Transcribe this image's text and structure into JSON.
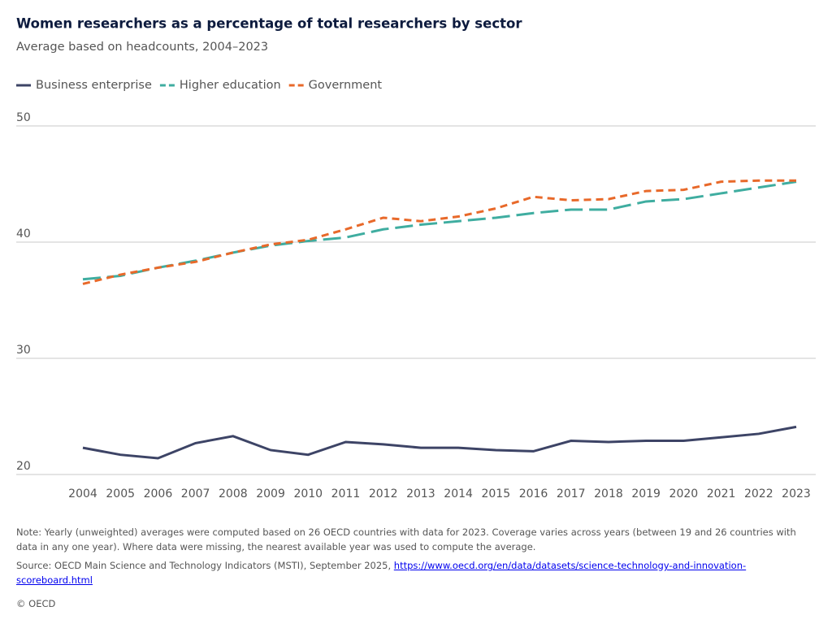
{
  "chart_data": {
    "type": "line",
    "title": "Women researchers as a percentage of total researchers by sector",
    "subtitle": "Average based on headcounts, 2004–2023",
    "x": [
      2004,
      2005,
      2006,
      2007,
      2008,
      2009,
      2010,
      2011,
      2012,
      2013,
      2014,
      2015,
      2016,
      2017,
      2018,
      2019,
      2020,
      2021,
      2022,
      2023
    ],
    "xlim": [
      2004,
      2023
    ],
    "xticks": [
      2004,
      2005,
      2006,
      2007,
      2008,
      2009,
      2010,
      2011,
      2012,
      2013,
      2014,
      2015,
      2016,
      2017,
      2018,
      2019,
      2020,
      2021,
      2022,
      2023
    ],
    "ylim": [
      20,
      50
    ],
    "yticks": [
      20,
      30,
      40,
      50
    ],
    "grid": true,
    "legend": "top-left",
    "series": [
      {
        "name": "Business enterprise",
        "color": "#3d4466",
        "line_style": "solid",
        "values": [
          22.3,
          21.7,
          21.4,
          22.7,
          23.3,
          22.1,
          21.7,
          22.8,
          22.6,
          22.3,
          22.3,
          22.1,
          22.0,
          22.9,
          22.8,
          22.9,
          22.9,
          23.2,
          23.5,
          24.1
        ]
      },
      {
        "name": "Higher education",
        "color": "#3fada0",
        "line_style": "long-dash",
        "values": [
          36.8,
          37.1,
          37.8,
          38.4,
          39.1,
          39.7,
          40.1,
          40.4,
          41.1,
          41.5,
          41.8,
          42.1,
          42.5,
          42.8,
          42.8,
          43.5,
          43.7,
          44.2,
          44.7,
          45.2
        ]
      },
      {
        "name": "Government",
        "color": "#e8692a",
        "line_style": "dash",
        "values": [
          36.4,
          37.2,
          37.8,
          38.3,
          39.1,
          39.8,
          40.2,
          41.1,
          42.1,
          41.8,
          42.2,
          42.9,
          43.9,
          43.6,
          43.7,
          44.4,
          44.5,
          45.2,
          45.3,
          45.3
        ]
      }
    ],
    "note": "Note: Yearly (unweighted) averages were computed based on 26 OECD countries with data for 2023. Coverage varies across years (between 19 and 26 countries with data in any one year). Where data were missing, the nearest available year was used to compute the average.",
    "source": "Source: OECD Main Science and Technology Indicators (MSTI), September 2025,",
    "source_url": "https://www.oecd.org/en/data/datasets/science-technology-and-innovation-scoreboard.html",
    "copyright": "© OECD"
  }
}
